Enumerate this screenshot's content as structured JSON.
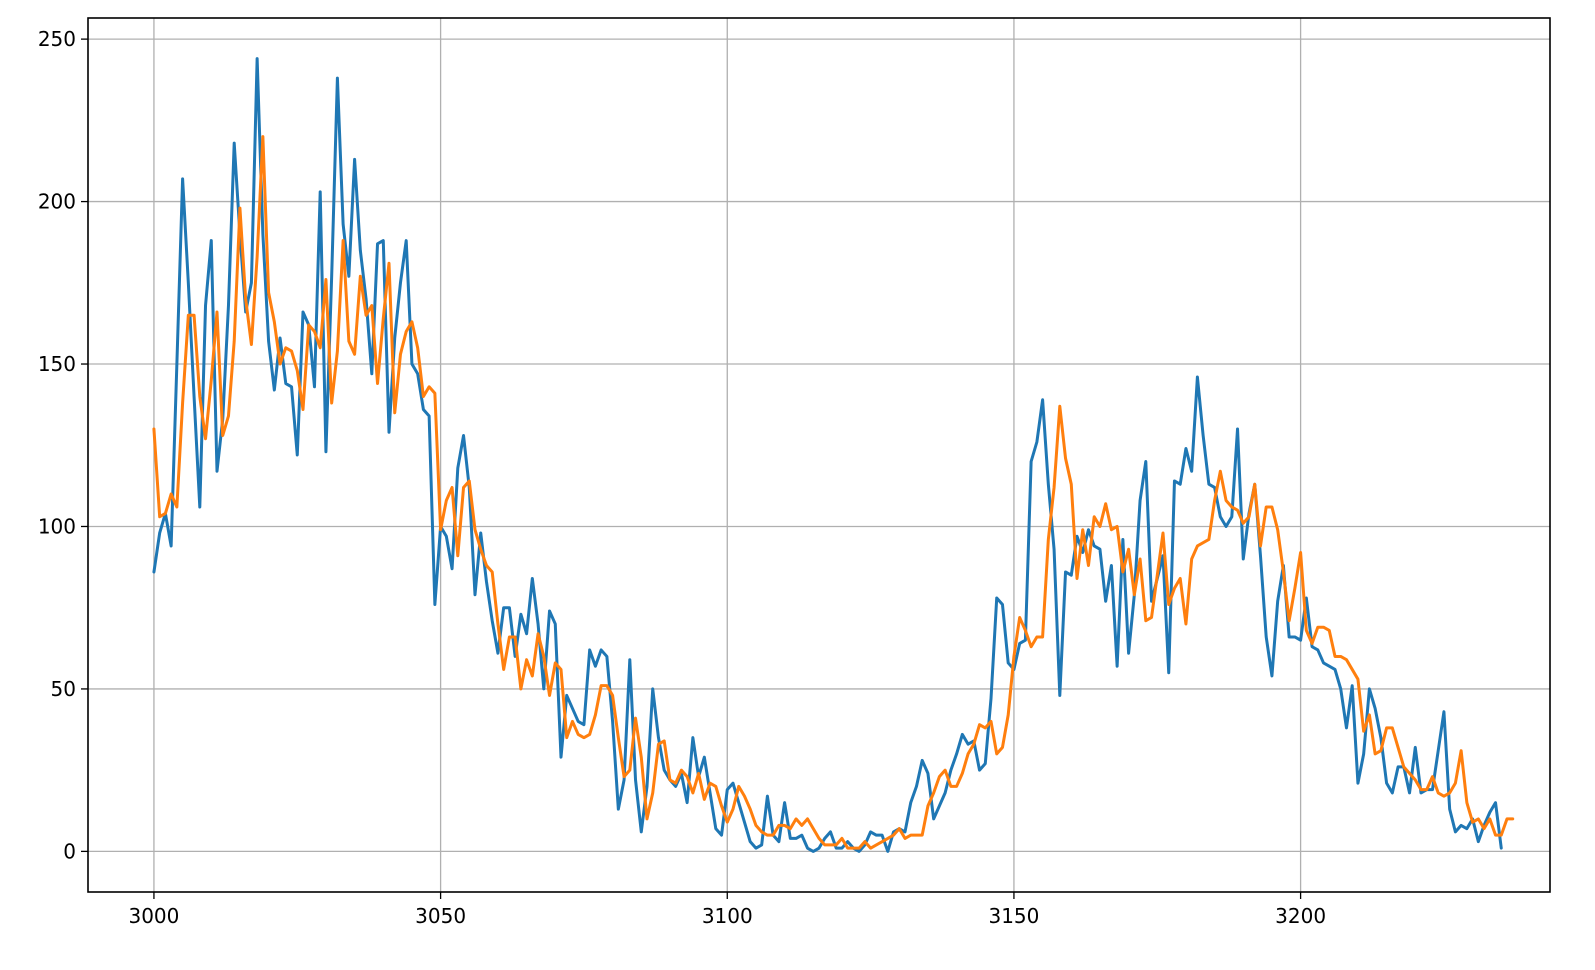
{
  "chart_data": {
    "type": "line",
    "title": "",
    "xlabel": "",
    "ylabel": "",
    "xlim": [
      2988.5,
      3243.5
    ],
    "ylim": [
      -12.5,
      256.5
    ],
    "grid": true,
    "x_ticks": [
      3000,
      3050,
      3100,
      3150,
      3200
    ],
    "y_ticks": [
      0,
      50,
      100,
      150,
      200,
      250
    ],
    "x_start": 3000,
    "series": [
      {
        "color": "#1f77b4",
        "values": [
          86,
          98,
          104,
          94,
          150,
          207,
          175,
          140,
          106,
          168,
          188,
          117,
          133,
          168,
          218,
          190,
          166,
          175,
          244,
          190,
          157,
          142,
          158,
          144,
          143,
          122,
          166,
          162,
          143,
          203,
          123,
          177,
          238,
          193,
          177,
          213,
          185,
          170,
          147,
          187,
          188,
          129,
          158,
          175,
          188,
          150,
          147,
          136,
          134,
          76,
          100,
          97,
          87,
          118,
          128,
          112,
          79,
          98,
          83,
          71,
          61,
          75,
          75,
          60,
          73,
          67,
          84,
          70,
          50,
          74,
          70,
          29,
          48,
          44,
          40,
          39,
          62,
          57,
          62,
          60,
          40,
          13,
          22,
          59,
          22,
          6,
          20,
          50,
          35,
          25,
          22,
          20,
          24,
          15,
          35,
          23,
          29,
          18,
          7,
          5,
          19,
          21,
          15,
          9,
          3,
          1,
          2,
          17,
          5,
          3,
          15,
          4,
          4,
          5,
          1,
          0,
          1,
          4,
          6,
          1,
          1,
          3,
          1,
          0,
          2,
          6,
          5,
          5,
          0,
          6,
          7,
          6,
          15,
          20,
          28,
          24,
          10,
          14,
          18,
          25,
          30,
          36,
          33,
          34,
          25,
          27,
          47,
          78,
          76,
          58,
          56,
          64,
          65,
          120,
          126,
          139,
          113,
          93,
          48,
          86,
          85,
          97,
          92,
          99,
          94,
          93,
          77,
          88,
          57,
          96,
          61,
          79,
          108,
          120,
          77,
          84,
          91,
          55,
          114,
          113,
          124,
          117,
          146,
          128,
          113,
          112,
          103,
          100,
          103,
          130,
          90,
          104,
          113,
          91,
          66,
          54,
          77,
          88,
          66,
          66,
          65,
          78,
          63,
          62,
          58,
          57,
          56,
          50,
          38,
          51,
          21,
          30,
          50,
          44,
          35,
          21,
          18,
          26,
          26,
          18,
          32,
          18,
          19,
          19,
          31,
          43,
          13,
          6,
          8,
          7,
          10,
          3,
          8,
          12,
          15,
          1
        ],
        "name": ""
      },
      {
        "color": "#ff7f0e",
        "values": [
          130,
          103,
          104,
          110,
          106,
          138,
          165,
          165,
          140,
          127,
          145,
          166,
          128,
          134,
          157,
          198,
          170,
          156,
          183,
          220,
          172,
          163,
          150,
          155,
          154,
          148,
          136,
          162,
          160,
          155,
          176,
          138,
          154,
          188,
          157,
          153,
          177,
          165,
          168,
          144,
          164,
          181,
          135,
          153,
          160,
          163,
          155,
          140,
          143,
          141,
          99,
          108,
          112,
          91,
          112,
          114,
          99,
          93,
          88,
          86,
          70,
          56,
          66,
          66,
          50,
          59,
          54,
          67,
          60,
          48,
          58,
          56,
          35,
          40,
          36,
          35,
          36,
          42,
          51,
          51,
          48,
          35,
          23,
          25,
          41,
          29,
          10,
          18,
          33,
          34,
          22,
          21,
          25,
          23,
          18,
          24,
          16,
          21,
          20,
          14,
          9,
          13,
          20,
          17,
          13,
          8,
          6,
          5,
          5,
          8,
          8,
          7,
          10,
          8,
          10,
          7,
          4,
          2,
          2,
          2,
          4,
          1,
          1,
          1,
          3,
          1,
          2,
          3,
          4,
          5,
          7,
          4,
          5,
          5,
          5,
          14,
          18,
          23,
          25,
          20,
          20,
          24,
          30,
          33,
          39,
          38,
          40,
          30,
          32,
          42,
          60,
          72,
          68,
          63,
          66,
          66,
          96,
          112,
          137,
          121,
          113,
          84,
          99,
          88,
          103,
          100,
          107,
          99,
          100,
          86,
          93,
          79,
          90,
          71,
          72,
          85,
          98,
          76,
          81,
          84,
          70,
          90,
          94,
          95,
          96,
          108,
          117,
          108,
          106,
          105,
          101,
          103,
          113,
          94,
          106,
          106,
          99,
          86,
          71,
          81,
          92,
          68,
          64,
          69,
          69,
          68,
          60,
          60,
          59,
          56,
          53,
          37,
          42,
          30,
          31,
          38,
          38,
          32,
          26,
          24,
          22,
          19,
          19,
          23,
          18,
          17,
          18,
          21,
          31,
          15,
          9,
          10,
          7,
          10,
          5,
          5,
          10,
          10
        ],
        "name": ""
      }
    ]
  }
}
